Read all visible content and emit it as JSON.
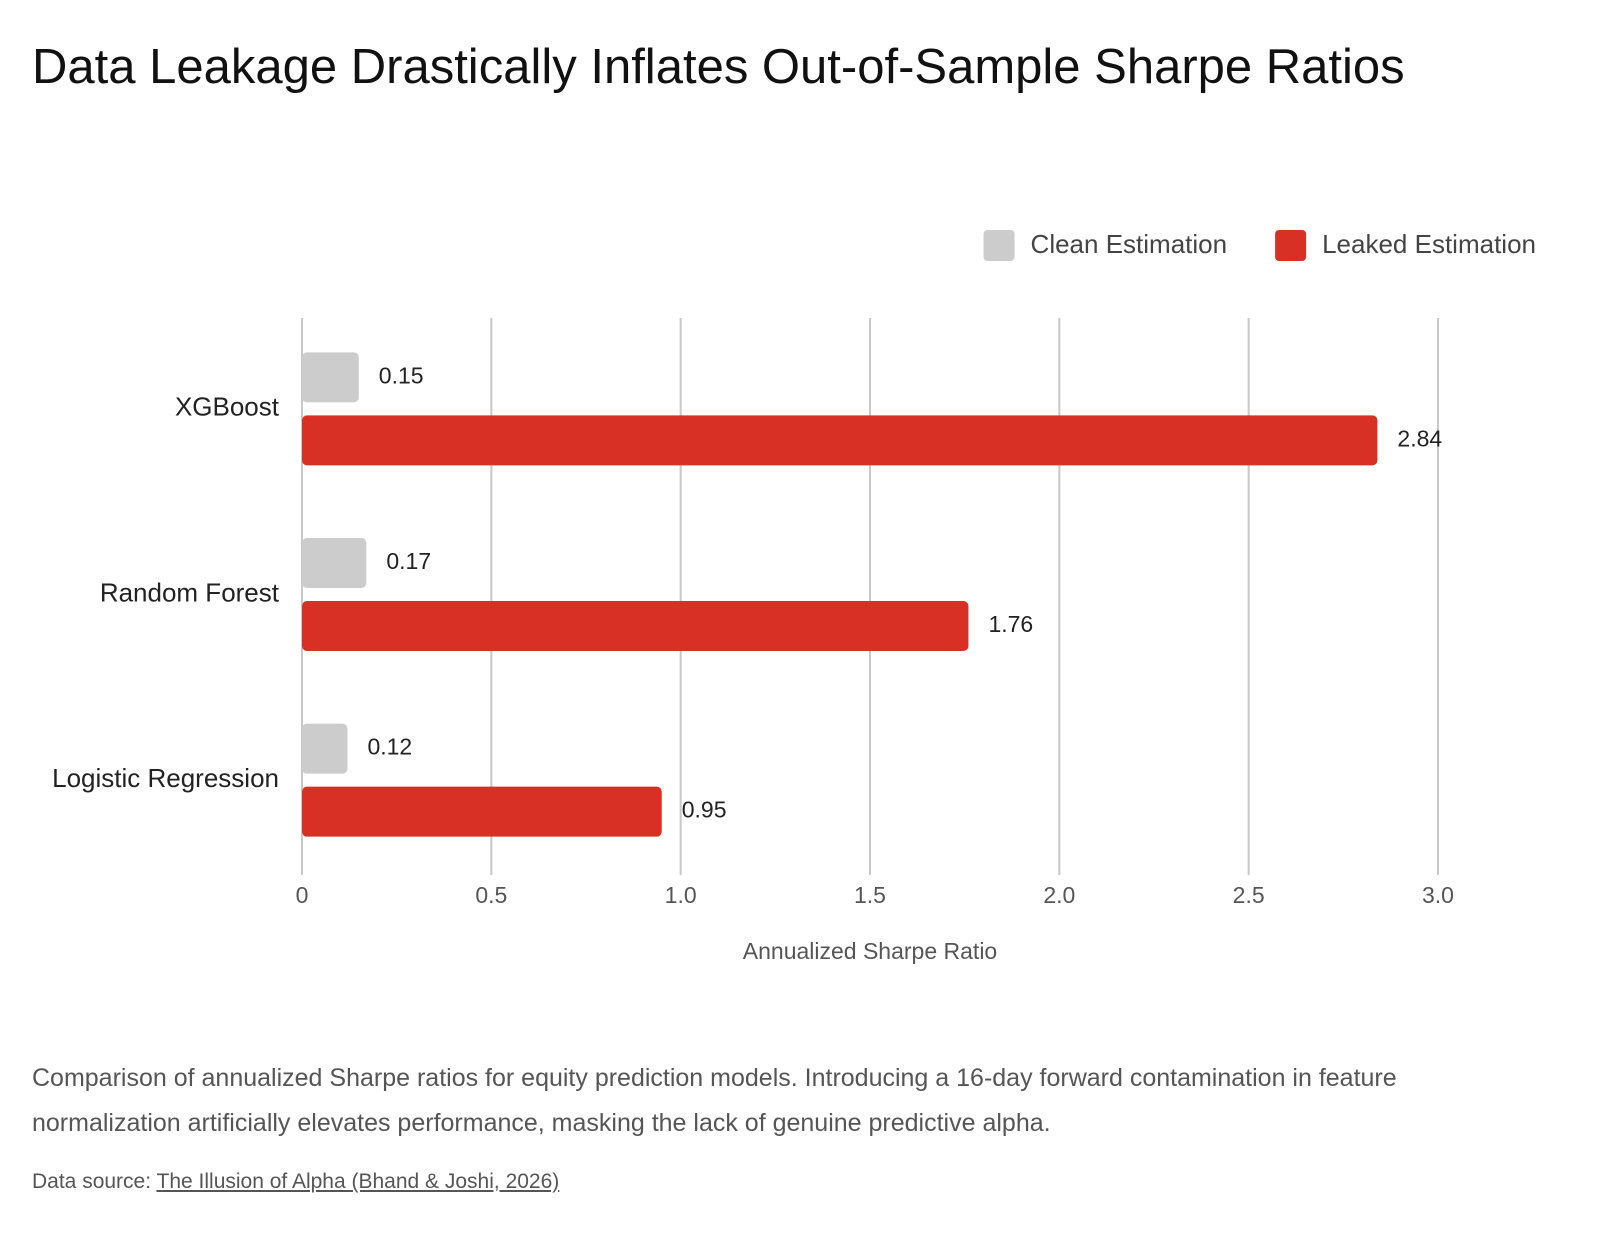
{
  "chart_data": {
    "type": "bar",
    "orientation": "horizontal",
    "title": "Data Leakage Drastically Inflates Out-of-Sample Sharpe Ratios",
    "categories": [
      "XGBoost",
      "Random Forest",
      "Logistic Regression"
    ],
    "series": [
      {
        "name": "Clean Estimation",
        "color": "#cccccc",
        "values": [
          0.15,
          0.17,
          0.12
        ]
      },
      {
        "name": "Leaked Estimation",
        "color": "#d93025",
        "values": [
          2.84,
          1.76,
          0.95
        ]
      }
    ],
    "xlabel": "Annualized Sharpe Ratio",
    "xlim": [
      0,
      3
    ],
    "xticks": [
      0,
      0.5,
      {
        "value": 1,
        "label": "1.0"
      },
      1.5,
      {
        "value": 2,
        "label": "2.0"
      },
      2.5,
      {
        "value": 3,
        "label": "3.0"
      }
    ],
    "grid": true,
    "legend": "top-right",
    "caption": "Comparison of annualized Sharpe ratios for equity prediction models. Introducing a 16-day forward contamination in feature normalization artificially elevates performance, masking the lack of genuine predictive alpha.",
    "source_prefix": "Data source:",
    "source_link": "The Illusion of Alpha (Bhand & Joshi, 2026)"
  }
}
